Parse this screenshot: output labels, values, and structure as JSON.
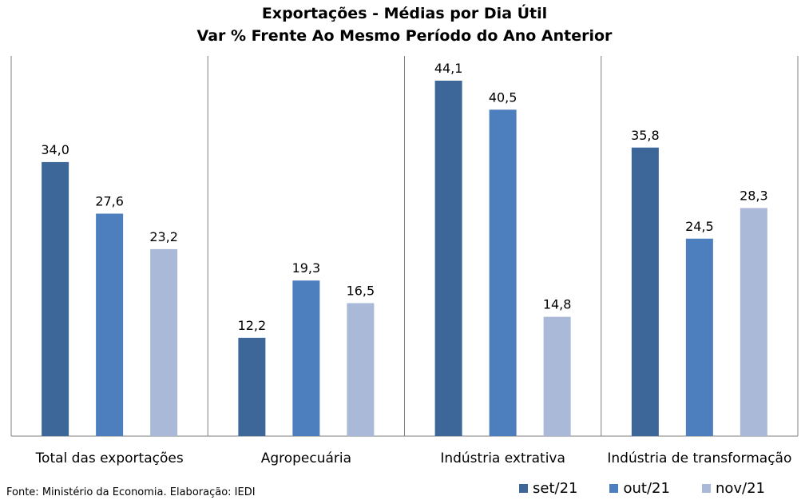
{
  "chart_data": {
    "type": "bar",
    "title": "Exportações - Médias por Dia Útil",
    "subtitle": "Var % Frente Ao Mesmo Período do Ano Anterior",
    "categories": [
      "Total das exportações",
      "Agropecuária",
      "Indústria extrativa",
      "Indústria de transformação"
    ],
    "series": [
      {
        "name": "set/21",
        "color": "#3d6799",
        "values": [
          34.0,
          12.2,
          44.1,
          35.8
        ],
        "labels": [
          "34,0",
          "12,2",
          "44,1",
          "35,8"
        ]
      },
      {
        "name": "out/21",
        "color": "#4d7fbe",
        "values": [
          27.6,
          19.3,
          40.5,
          24.5
        ],
        "labels": [
          "27,6",
          "19,3",
          "40,5",
          "24,5"
        ]
      },
      {
        "name": "nov/21",
        "color": "#abb9d8",
        "values": [
          23.2,
          16.5,
          14.8,
          28.3
        ],
        "labels": [
          "23,2",
          "16,5",
          "14,8",
          "28,3"
        ]
      }
    ],
    "ylim": [
      0,
      48
    ],
    "grid": false,
    "legend": "bottom-right"
  },
  "footer": {
    "source": "Fonte: Ministério da Economia. Elaboração: IEDI"
  }
}
